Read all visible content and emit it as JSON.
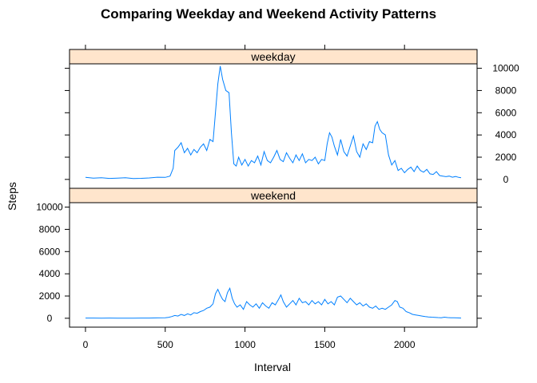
{
  "chart_data": {
    "type": "line",
    "title": "Comparing Weekday and Weekend Activity Patterns",
    "xlabel": "Interval",
    "ylabel": "Steps",
    "xlim": [
      -100,
      2455
    ],
    "ylim": [
      -800,
      10400
    ],
    "x_ticks": [
      0,
      500,
      1000,
      1500,
      2000
    ],
    "y_ticks": [
      0,
      2000,
      4000,
      6000,
      8000,
      10000
    ],
    "colors": {
      "line": "#0080ff",
      "strip": "#ffe5cc",
      "frame": "#000000"
    },
    "panels": [
      {
        "name": "weekday",
        "points": [
          [
            0,
            180
          ],
          [
            50,
            120
          ],
          [
            100,
            150
          ],
          [
            150,
            90
          ],
          [
            200,
            110
          ],
          [
            250,
            150
          ],
          [
            300,
            80
          ],
          [
            350,
            100
          ],
          [
            400,
            130
          ],
          [
            450,
            200
          ],
          [
            500,
            180
          ],
          [
            530,
            300
          ],
          [
            550,
            1000
          ],
          [
            560,
            2600
          ],
          [
            580,
            2900
          ],
          [
            600,
            3300
          ],
          [
            620,
            2400
          ],
          [
            640,
            2800
          ],
          [
            660,
            2200
          ],
          [
            680,
            2700
          ],
          [
            700,
            2400
          ],
          [
            720,
            2900
          ],
          [
            740,
            3200
          ],
          [
            760,
            2600
          ],
          [
            780,
            3600
          ],
          [
            800,
            3400
          ],
          [
            815,
            6000
          ],
          [
            830,
            8600
          ],
          [
            845,
            10200
          ],
          [
            860,
            9000
          ],
          [
            880,
            8000
          ],
          [
            900,
            7800
          ],
          [
            915,
            4200
          ],
          [
            930,
            1400
          ],
          [
            945,
            1200
          ],
          [
            960,
            2000
          ],
          [
            980,
            1300
          ],
          [
            1000,
            1800
          ],
          [
            1020,
            1200
          ],
          [
            1040,
            1700
          ],
          [
            1060,
            1500
          ],
          [
            1080,
            2100
          ],
          [
            1100,
            1300
          ],
          [
            1120,
            2500
          ],
          [
            1140,
            1700
          ],
          [
            1160,
            1500
          ],
          [
            1180,
            2000
          ],
          [
            1200,
            2600
          ],
          [
            1220,
            1800
          ],
          [
            1240,
            1600
          ],
          [
            1260,
            2400
          ],
          [
            1280,
            1900
          ],
          [
            1300,
            1500
          ],
          [
            1320,
            2200
          ],
          [
            1340,
            1700
          ],
          [
            1360,
            2300
          ],
          [
            1380,
            1500
          ],
          [
            1400,
            1800
          ],
          [
            1420,
            1700
          ],
          [
            1440,
            2000
          ],
          [
            1460,
            1400
          ],
          [
            1480,
            1800
          ],
          [
            1500,
            1700
          ],
          [
            1515,
            3200
          ],
          [
            1530,
            4200
          ],
          [
            1545,
            3800
          ],
          [
            1560,
            3000
          ],
          [
            1580,
            2200
          ],
          [
            1600,
            3600
          ],
          [
            1620,
            2500
          ],
          [
            1640,
            2100
          ],
          [
            1660,
            3000
          ],
          [
            1680,
            3900
          ],
          [
            1700,
            2500
          ],
          [
            1720,
            2000
          ],
          [
            1740,
            3200
          ],
          [
            1760,
            2700
          ],
          [
            1780,
            3400
          ],
          [
            1800,
            3300
          ],
          [
            1815,
            4800
          ],
          [
            1830,
            5200
          ],
          [
            1845,
            4500
          ],
          [
            1860,
            4200
          ],
          [
            1880,
            4000
          ],
          [
            1900,
            2200
          ],
          [
            1920,
            1300
          ],
          [
            1940,
            1700
          ],
          [
            1960,
            800
          ],
          [
            1980,
            1000
          ],
          [
            2000,
            600
          ],
          [
            2020,
            900
          ],
          [
            2040,
            1100
          ],
          [
            2060,
            700
          ],
          [
            2080,
            1200
          ],
          [
            2100,
            800
          ],
          [
            2120,
            650
          ],
          [
            2140,
            900
          ],
          [
            2160,
            500
          ],
          [
            2180,
            450
          ],
          [
            2200,
            700
          ],
          [
            2220,
            350
          ],
          [
            2240,
            300
          ],
          [
            2260,
            250
          ],
          [
            2280,
            300
          ],
          [
            2300,
            200
          ],
          [
            2320,
            260
          ],
          [
            2340,
            180
          ],
          [
            2355,
            150
          ]
        ]
      },
      {
        "name": "weekend",
        "points": [
          [
            0,
            20
          ],
          [
            50,
            15
          ],
          [
            100,
            10
          ],
          [
            150,
            15
          ],
          [
            200,
            10
          ],
          [
            250,
            12
          ],
          [
            300,
            10
          ],
          [
            350,
            15
          ],
          [
            400,
            20
          ],
          [
            450,
            30
          ],
          [
            500,
            40
          ],
          [
            520,
            80
          ],
          [
            540,
            150
          ],
          [
            560,
            250
          ],
          [
            580,
            200
          ],
          [
            600,
            350
          ],
          [
            620,
            250
          ],
          [
            640,
            400
          ],
          [
            660,
            300
          ],
          [
            680,
            500
          ],
          [
            700,
            450
          ],
          [
            720,
            600
          ],
          [
            740,
            700
          ],
          [
            760,
            900
          ],
          [
            780,
            1000
          ],
          [
            800,
            1300
          ],
          [
            815,
            2200
          ],
          [
            830,
            2600
          ],
          [
            845,
            2100
          ],
          [
            860,
            1700
          ],
          [
            875,
            1500
          ],
          [
            890,
            2300
          ],
          [
            905,
            2700
          ],
          [
            920,
            1800
          ],
          [
            935,
            1300
          ],
          [
            950,
            1000
          ],
          [
            970,
            1200
          ],
          [
            990,
            800
          ],
          [
            1010,
            1500
          ],
          [
            1030,
            1200
          ],
          [
            1050,
            1000
          ],
          [
            1070,
            1300
          ],
          [
            1090,
            900
          ],
          [
            1110,
            1400
          ],
          [
            1130,
            1100
          ],
          [
            1150,
            900
          ],
          [
            1170,
            1400
          ],
          [
            1190,
            1200
          ],
          [
            1210,
            1700
          ],
          [
            1225,
            2100
          ],
          [
            1240,
            1500
          ],
          [
            1260,
            1000
          ],
          [
            1280,
            1300
          ],
          [
            1300,
            1600
          ],
          [
            1320,
            1200
          ],
          [
            1340,
            1800
          ],
          [
            1360,
            1400
          ],
          [
            1380,
            1500
          ],
          [
            1400,
            1200
          ],
          [
            1420,
            1600
          ],
          [
            1440,
            1300
          ],
          [
            1460,
            1500
          ],
          [
            1480,
            1200
          ],
          [
            1500,
            1700
          ],
          [
            1520,
            1300
          ],
          [
            1540,
            1500
          ],
          [
            1560,
            1200
          ],
          [
            1580,
            1900
          ],
          [
            1600,
            2000
          ],
          [
            1620,
            1700
          ],
          [
            1640,
            1400
          ],
          [
            1660,
            1800
          ],
          [
            1680,
            1500
          ],
          [
            1700,
            1200
          ],
          [
            1720,
            1400
          ],
          [
            1740,
            1100
          ],
          [
            1760,
            1300
          ],
          [
            1780,
            1000
          ],
          [
            1800,
            900
          ],
          [
            1820,
            1100
          ],
          [
            1840,
            800
          ],
          [
            1860,
            900
          ],
          [
            1880,
            800
          ],
          [
            1900,
            1000
          ],
          [
            1920,
            1200
          ],
          [
            1940,
            1600
          ],
          [
            1955,
            1500
          ],
          [
            1970,
            1000
          ],
          [
            1990,
            900
          ],
          [
            2010,
            600
          ],
          [
            2030,
            500
          ],
          [
            2050,
            350
          ],
          [
            2070,
            300
          ],
          [
            2090,
            250
          ],
          [
            2110,
            200
          ],
          [
            2130,
            150
          ],
          [
            2150,
            120
          ],
          [
            2170,
            100
          ],
          [
            2190,
            80
          ],
          [
            2210,
            60
          ],
          [
            2230,
            50
          ],
          [
            2250,
            100
          ],
          [
            2270,
            60
          ],
          [
            2290,
            50
          ],
          [
            2310,
            40
          ],
          [
            2330,
            30
          ],
          [
            2355,
            20
          ]
        ]
      }
    ]
  }
}
